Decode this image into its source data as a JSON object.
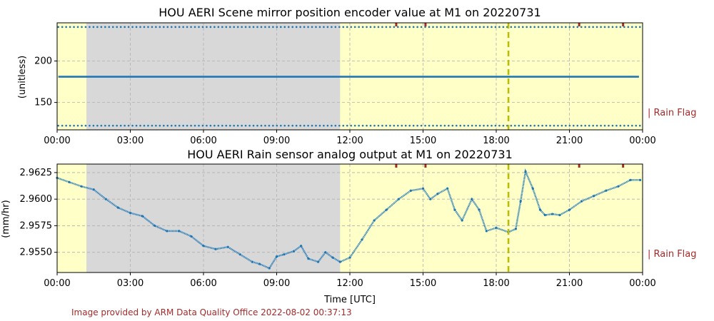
{
  "footer": {
    "credit": "Image provided by ARM Data Quality Office 2022-08-02 00:37:13"
  },
  "colors": {
    "series": "#1f77b4",
    "good": "#ffffc8",
    "missing": "#d8d8d8",
    "marker": "#bbbb00",
    "flag": "#a52a2a"
  },
  "chart_data": [
    {
      "type": "scatter",
      "title": "HOU AERI Scene mirror position encoder value at M1 on 20220731",
      "xlabel": "",
      "ylabel": "(unitless)",
      "flag_label": "| Rain Flag",
      "x_ticks": [
        "00:00",
        "03:00",
        "06:00",
        "09:00",
        "12:00",
        "15:00",
        "18:00",
        "21:00",
        "00:00"
      ],
      "y_ticks": [
        150,
        200
      ],
      "xlim_hours": [
        0,
        24
      ],
      "ylim": [
        117,
        246
      ],
      "grid": true,
      "missing_interval_hours": [
        1.2,
        11.6
      ],
      "vertical_marker_hours": 18.5,
      "rain_flag_hours": [
        13.9,
        15.1,
        21.4,
        23.2
      ],
      "series": [
        {
          "values_desc": "three discrete levels",
          "levels": [
            122,
            181,
            241
          ],
          "style": "dots at 122 and 241, continuous line at 181"
        }
      ]
    },
    {
      "type": "scatter",
      "title": "HOU AERI Rain sensor analog output at M1 on 20220731",
      "xlabel": "Time [UTC]",
      "ylabel": "(mm/hr)",
      "flag_label": "| Rain Flag",
      "x_ticks": [
        "00:00",
        "03:00",
        "06:00",
        "09:00",
        "12:00",
        "15:00",
        "18:00",
        "21:00",
        "00:00"
      ],
      "y_ticks": [
        "2.9550",
        "2.9575",
        "2.9600",
        "2.9625"
      ],
      "xlim_hours": [
        0,
        24
      ],
      "ylim": [
        2.9531,
        2.9633
      ],
      "grid": true,
      "missing_interval_hours": [
        1.2,
        11.6
      ],
      "vertical_marker_hours": 18.5,
      "rain_flag_hours": [
        13.9,
        15.1,
        21.4,
        23.2
      ],
      "x": [
        0.0,
        0.5,
        1.0,
        1.5,
        2.0,
        2.5,
        3.0,
        3.5,
        4.0,
        4.5,
        5.0,
        5.5,
        6.0,
        6.5,
        7.0,
        7.5,
        8.0,
        8.3,
        8.7,
        9.0,
        9.3,
        9.7,
        10.0,
        10.3,
        10.7,
        11.0,
        11.3,
        11.6,
        12.0,
        12.5,
        13.0,
        13.5,
        14.0,
        14.5,
        15.0,
        15.3,
        15.6,
        16.0,
        16.3,
        16.6,
        17.0,
        17.3,
        17.6,
        18.0,
        18.5,
        18.8,
        19.0,
        19.2,
        19.5,
        19.8,
        20.0,
        20.3,
        20.6,
        21.0,
        21.5,
        22.0,
        22.5,
        23.0,
        23.5,
        23.9
      ],
      "y": [
        2.962,
        2.9616,
        2.9612,
        2.9609,
        2.96,
        2.9592,
        2.9587,
        2.9584,
        2.9575,
        2.957,
        2.957,
        2.9565,
        2.9556,
        2.9553,
        2.9555,
        2.9548,
        2.9541,
        2.9539,
        2.9535,
        2.9546,
        2.9548,
        2.9551,
        2.9556,
        2.9544,
        2.9541,
        2.955,
        2.9545,
        2.9541,
        2.9545,
        2.9562,
        2.958,
        2.959,
        2.96,
        2.9608,
        2.961,
        2.96,
        2.9605,
        2.961,
        2.959,
        2.958,
        2.96,
        2.959,
        2.957,
        2.9573,
        2.9569,
        2.9572,
        2.9598,
        2.9626,
        2.961,
        2.959,
        2.9585,
        2.9586,
        2.9585,
        2.959,
        2.9598,
        2.9603,
        2.9608,
        2.9612,
        2.9618,
        2.9618
      ]
    }
  ]
}
